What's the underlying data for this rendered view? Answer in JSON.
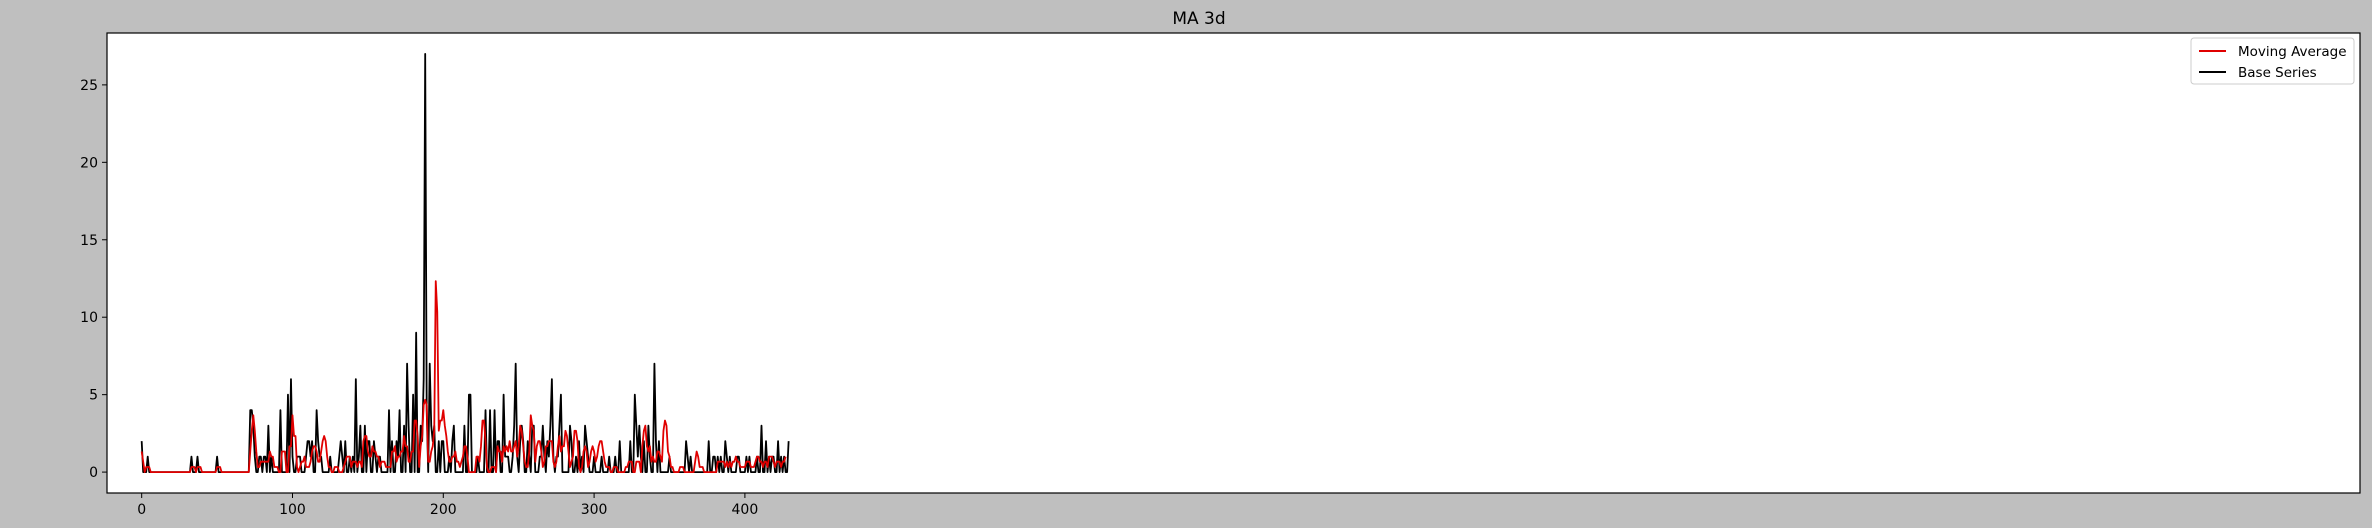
{
  "chart_data": {
    "type": "line",
    "title": "MA 3d",
    "xlabel": "",
    "ylabel": "",
    "xlim": [
      -23,
      1471
    ],
    "ylim": [
      -1.35,
      28.35
    ],
    "x_ticks": [
      0,
      100,
      200,
      300,
      400
    ],
    "y_ticks": [
      0,
      5,
      10,
      15,
      20,
      25
    ],
    "grid": false,
    "legend_position": "top-right",
    "colors": {
      "figure_bg": "#bfbfbf",
      "axes_bg": "#ffffff",
      "moving_average": "#e00000",
      "base_series": "#000000"
    },
    "x_scale": 1,
    "x_step": 1,
    "series": [
      {
        "name": "Moving Average",
        "color": "#e00000",
        "values": [
          1.33,
          0.67,
          0,
          0.33,
          0.33,
          0.33,
          0,
          0,
          0,
          0,
          0,
          0,
          0,
          0,
          0,
          0,
          0,
          0,
          0,
          0,
          0,
          0,
          0,
          0,
          0,
          0,
          0,
          0,
          0,
          0,
          0,
          0,
          0,
          0.33,
          0.33,
          0.33,
          0,
          0.33,
          0.33,
          0.33,
          0,
          0,
          0,
          0,
          0,
          0,
          0,
          0,
          0,
          0,
          0.33,
          0.33,
          0.33,
          0,
          0,
          0,
          0,
          0,
          0,
          0,
          0,
          0,
          0,
          0,
          0,
          0,
          0,
          0,
          0,
          0,
          0,
          0,
          1.33,
          2.67,
          3.67,
          2.67,
          1.33,
          0.33,
          0.33,
          0.67,
          0.67,
          0.67,
          0.67,
          0.67,
          0.67,
          1.33,
          1,
          1,
          0.33,
          0.33,
          0.33,
          0,
          0,
          1.33,
          1.33,
          1.33,
          0,
          0,
          1.67,
          1.67,
          3.67,
          2.33,
          2.33,
          0.33,
          0,
          0.33,
          0.67,
          0.67,
          1,
          0.33,
          0.33,
          0.33,
          0.67,
          1.33,
          1.67,
          1.67,
          1.33,
          0.67,
          0.67,
          1.33,
          2,
          2.33,
          2,
          1,
          0.33,
          0.33,
          0,
          0,
          0.33,
          0.33,
          0.33,
          0,
          0,
          0,
          0.33,
          0.67,
          1,
          1,
          1,
          0.33,
          0.67,
          0.67,
          0.67,
          0.33,
          0.67,
          0.67,
          0.33,
          2,
          2.33,
          2.33,
          1.33,
          1,
          1,
          1.67,
          1.33,
          1.33,
          1,
          1,
          0.33,
          0.67,
          0.67,
          0.67,
          0.33,
          0.33,
          0.33,
          0.33,
          1.33,
          1.33,
          1.67,
          0.67,
          1,
          1,
          1.33,
          1.33,
          2.33,
          1.67,
          1.67,
          0.67,
          0.67,
          1.33,
          1.33,
          3.33,
          3.33,
          2.33,
          0.33,
          1.67,
          2.33,
          4.33,
          4.67,
          4.33,
          0.67,
          0.67,
          1.33,
          1.67,
          2.67,
          12.33,
          10.33,
          2.67,
          3.33,
          3.33,
          4,
          3,
          2.33,
          1.33,
          0.67,
          0.67,
          1,
          1,
          1.33,
          0.67,
          0.67,
          0.33,
          0.67,
          1,
          1.67,
          1.67,
          1,
          0,
          0,
          0,
          0,
          0,
          1,
          1,
          0.67,
          1.67,
          3.33,
          3.33,
          2,
          0.33,
          0,
          0,
          0.33,
          0.33,
          0.33,
          0,
          1.67,
          1.33,
          1.33,
          0.67,
          1.67,
          1.33,
          1.67,
          1.33,
          2,
          1.33,
          1.33,
          1.67,
          2,
          1,
          1.67,
          3,
          2.67,
          1.67,
          0.67,
          0.33,
          0.33,
          1.33,
          3.67,
          3,
          2.67,
          0.67,
          1.67,
          2,
          2,
          1.33,
          0.33,
          0.67,
          1.67,
          1.67,
          2,
          2,
          2,
          0.67,
          0.33,
          0.67,
          1.67,
          2.33,
          1.33,
          1.67,
          1.67,
          2.67,
          2.33,
          1.33,
          0.33,
          0.67,
          1,
          2.67,
          2.67,
          2,
          0.33,
          0,
          0.33,
          1.33,
          1.67,
          1.33,
          0.33,
          0.67,
          1.33,
          1.67,
          1.33,
          0.67,
          1,
          1.67,
          2,
          2,
          1.33,
          0.67,
          0.33,
          0.33,
          0.33,
          0,
          0,
          0.33,
          0.33,
          0.33,
          0,
          0,
          0,
          0,
          0,
          0.33,
          0.33,
          0.67,
          0.67,
          0.67,
          0,
          0,
          0.67,
          0.67,
          0.67,
          0,
          1.67,
          2.67,
          3,
          1.67,
          1.33,
          1.67,
          0.67,
          1,
          0.67,
          0.67,
          1.33,
          1.33,
          1,
          0.67,
          2.67,
          3.33,
          3,
          1.33,
          1,
          0.33,
          0.33,
          0,
          0,
          0,
          0,
          0.33,
          0.33,
          0.33,
          0,
          0,
          0,
          0,
          0,
          0,
          0,
          0.67,
          1.33,
          1,
          0.33,
          0.33,
          0.33,
          0,
          0,
          0,
          0,
          0,
          0,
          0,
          0,
          0,
          0.67,
          0.67,
          0.67,
          0.67,
          0.67,
          0.33,
          0.67,
          0.33,
          0.67,
          0.33,
          0.67,
          0.67,
          1,
          0.67,
          0.67,
          0.33,
          0.33,
          0.33,
          0.33,
          0.67,
          0.67,
          0.67,
          0.33,
          0.33,
          0.33,
          0.67,
          1,
          1,
          0.67,
          0.67,
          0.33,
          0.67,
          0.67,
          0.33,
          1,
          1,
          1,
          0.67,
          0.33,
          0.67,
          0.67,
          0.67,
          0.33,
          0.67,
          0.67,
          1
        ]
      },
      {
        "name": "Base Series",
        "color": "#000000",
        "values": [
          2,
          0,
          0,
          0,
          1,
          0,
          0,
          0,
          0,
          0,
          0,
          0,
          0,
          0,
          0,
          0,
          0,
          0,
          0,
          0,
          0,
          0,
          0,
          0,
          0,
          0,
          0,
          0,
          0,
          0,
          0,
          0,
          0,
          1,
          0,
          0,
          0,
          1,
          0,
          0,
          0,
          0,
          0,
          0,
          0,
          0,
          0,
          0,
          0,
          0,
          1,
          0,
          0,
          0,
          0,
          0,
          0,
          0,
          0,
          0,
          0,
          0,
          0,
          0,
          0,
          0,
          0,
          0,
          0,
          0,
          0,
          0,
          4,
          4,
          3,
          1,
          0,
          0,
          1,
          1,
          0,
          1,
          1,
          0,
          3,
          0,
          1,
          0,
          0,
          0,
          0,
          0,
          4,
          0,
          0,
          0,
          0,
          5,
          0,
          6,
          1,
          0,
          0,
          1,
          1,
          1,
          0,
          0,
          0,
          1,
          2,
          2,
          1,
          2,
          0,
          0,
          4,
          2,
          1,
          1,
          0,
          0,
          0,
          0,
          0,
          1,
          0,
          0,
          0,
          0,
          0,
          1,
          2,
          1,
          0,
          2,
          0,
          0,
          1,
          0,
          1,
          0,
          6,
          0,
          1,
          3,
          0,
          0,
          3,
          0,
          2,
          2,
          0,
          0,
          2,
          1,
          0,
          1,
          1,
          0,
          0,
          0,
          0,
          0,
          4,
          0,
          2,
          0,
          0,
          2,
          1,
          4,
          0,
          0,
          3,
          0,
          7,
          3,
          0,
          0,
          5,
          0,
          9,
          0,
          0,
          3,
          2,
          6,
          27,
          4,
          0,
          7,
          3,
          2,
          3,
          0,
          0,
          2,
          0,
          2,
          2,
          0,
          0,
          0,
          1,
          0,
          2,
          3,
          0,
          0,
          0,
          0,
          0,
          0,
          3,
          0,
          0,
          5,
          5,
          0,
          0,
          0,
          0,
          1,
          0,
          0,
          0,
          0,
          4,
          0,
          0,
          4,
          0,
          0,
          4,
          0,
          2,
          2,
          0,
          0,
          5,
          1,
          1,
          1,
          0,
          0,
          1,
          3,
          7,
          1,
          0,
          2,
          3,
          2,
          0,
          0,
          2,
          1,
          0,
          3,
          3,
          0,
          0,
          0,
          1,
          1,
          3,
          1,
          0,
          2,
          1,
          3,
          6,
          1,
          0,
          1,
          1,
          3,
          5,
          0,
          0,
          0,
          0,
          0,
          3,
          2,
          0,
          0,
          1,
          0,
          2,
          0,
          1,
          0,
          3,
          2,
          1,
          0,
          0,
          0,
          1,
          0,
          0,
          0,
          0,
          1,
          0,
          0,
          0,
          0,
          1,
          0,
          0,
          0,
          1,
          0,
          0,
          2,
          0,
          0,
          0,
          0,
          0,
          0,
          2,
          0,
          0,
          5,
          3,
          1,
          3,
          1,
          0,
          2,
          0,
          0,
          3,
          1,
          0,
          0,
          7,
          2,
          0,
          2,
          0,
          0,
          0,
          0,
          0,
          0,
          1,
          0,
          0,
          0,
          0,
          0,
          0,
          0,
          0,
          0,
          0,
          2,
          1,
          0,
          1,
          0,
          0,
          0,
          0,
          0,
          0,
          0,
          0,
          0,
          0,
          0,
          2,
          0,
          0,
          1,
          1,
          0,
          1,
          0,
          1,
          0,
          0,
          2,
          1,
          0,
          1,
          0,
          0,
          0,
          0,
          1,
          1,
          0,
          0,
          0,
          0,
          1,
          0,
          1,
          0,
          0,
          0,
          0,
          1,
          0,
          0,
          3,
          0,
          0,
          2,
          0,
          1,
          0,
          1,
          1,
          0,
          0,
          2,
          0,
          1,
          0,
          1,
          0,
          0,
          2
        ]
      }
    ]
  }
}
